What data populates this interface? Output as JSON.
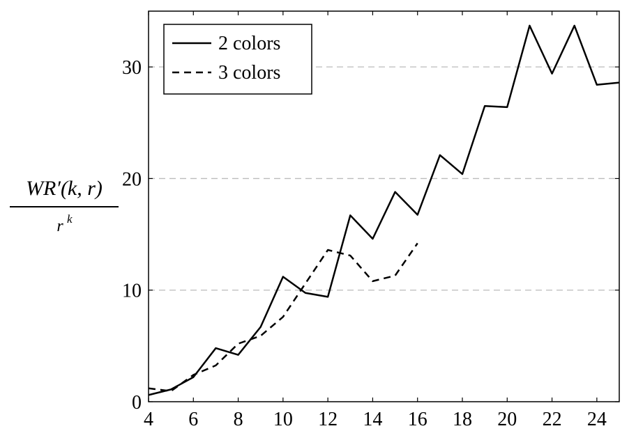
{
  "chart_data": {
    "type": "line",
    "y_label": {
      "numerator": "WR′(k, r)",
      "denominator_base": "r",
      "denominator_exponent": "k"
    },
    "x": [
      4,
      5,
      6,
      7,
      8,
      9,
      10,
      11,
      12,
      13,
      14,
      15,
      16,
      17,
      18,
      19,
      20,
      21,
      22,
      23,
      24,
      25
    ],
    "series": [
      {
        "name": "2 colors",
        "color": "#000000",
        "line_style": "solid",
        "values": [
          0.6,
          1.1,
          2.2,
          4.8,
          4.2,
          6.7,
          11.2,
          9.75,
          9.4,
          16.7,
          14.6,
          18.8,
          16.75,
          22.1,
          20.4,
          26.5,
          26.4,
          33.7,
          29.4,
          33.7,
          28.4,
          28.6
        ]
      },
      {
        "name": "3 colors",
        "color": "#000000",
        "line_style": "dashed",
        "values": [
          1.2,
          0.95,
          2.4,
          3.25,
          5.2,
          5.9,
          7.6,
          10.6,
          13.6,
          13.1,
          10.8,
          11.3,
          14.2,
          null,
          null,
          null,
          null,
          null,
          null,
          null,
          null,
          null
        ]
      }
    ],
    "xlim": [
      4,
      25
    ],
    "xticks": [
      4,
      6,
      8,
      10,
      12,
      14,
      16,
      18,
      20,
      22,
      24
    ],
    "ylim": [
      0,
      35
    ],
    "yticks": [
      0,
      10,
      20,
      30
    ],
    "grid": true,
    "legend_position": "upper-left"
  }
}
